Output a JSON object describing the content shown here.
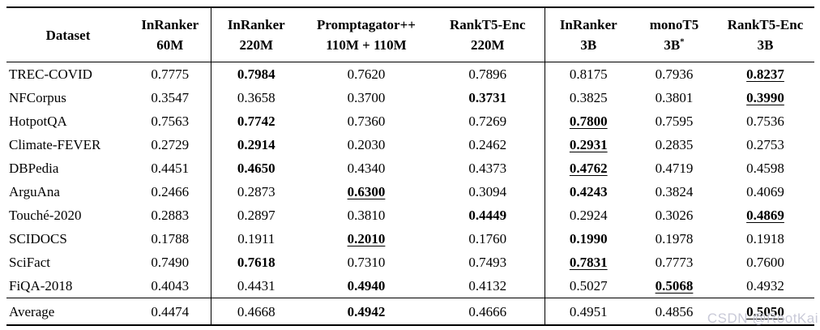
{
  "table": {
    "columns": [
      {
        "label": "Dataset",
        "sub": ""
      },
      {
        "label": "InRanker",
        "sub": "60M"
      },
      {
        "label": "InRanker",
        "sub": "220M"
      },
      {
        "label": "Promptagator++",
        "sub": "110M + 110M"
      },
      {
        "label": "RankT5-Enc",
        "sub": "220M"
      },
      {
        "label": "InRanker",
        "sub": "3B"
      },
      {
        "label": "monoT5",
        "sub": "3B",
        "sup": "*"
      },
      {
        "label": "RankT5-Enc",
        "sub": "3B"
      }
    ],
    "rows": [
      {
        "dataset": "TREC-COVID",
        "cells": [
          {
            "v": "0.7775"
          },
          {
            "v": "0.7984",
            "b": true
          },
          {
            "v": "0.7620"
          },
          {
            "v": "0.7896"
          },
          {
            "v": "0.8175"
          },
          {
            "v": "0.7936"
          },
          {
            "v": "0.8237",
            "b": true,
            "u": true
          }
        ]
      },
      {
        "dataset": "NFCorpus",
        "cells": [
          {
            "v": "0.3547"
          },
          {
            "v": "0.3658"
          },
          {
            "v": "0.3700"
          },
          {
            "v": "0.3731",
            "b": true
          },
          {
            "v": "0.3825"
          },
          {
            "v": "0.3801"
          },
          {
            "v": "0.3990",
            "b": true,
            "u": true
          }
        ]
      },
      {
        "dataset": "HotpotQA",
        "cells": [
          {
            "v": "0.7563"
          },
          {
            "v": "0.7742",
            "b": true
          },
          {
            "v": "0.7360"
          },
          {
            "v": "0.7269"
          },
          {
            "v": "0.7800",
            "b": true,
            "u": true
          },
          {
            "v": "0.7595"
          },
          {
            "v": "0.7536"
          }
        ]
      },
      {
        "dataset": "Climate-FEVER",
        "cells": [
          {
            "v": "0.2729"
          },
          {
            "v": "0.2914",
            "b": true
          },
          {
            "v": "0.2030"
          },
          {
            "v": "0.2462"
          },
          {
            "v": "0.2931",
            "b": true,
            "u": true
          },
          {
            "v": "0.2835"
          },
          {
            "v": "0.2753"
          }
        ]
      },
      {
        "dataset": "DBPedia",
        "cells": [
          {
            "v": "0.4451"
          },
          {
            "v": "0.4650",
            "b": true
          },
          {
            "v": "0.4340"
          },
          {
            "v": "0.4373"
          },
          {
            "v": "0.4762",
            "b": true,
            "u": true
          },
          {
            "v": "0.4719"
          },
          {
            "v": "0.4598"
          }
        ]
      },
      {
        "dataset": "ArguAna",
        "cells": [
          {
            "v": "0.2466"
          },
          {
            "v": "0.2873"
          },
          {
            "v": "0.6300",
            "b": true,
            "u": true
          },
          {
            "v": "0.3094"
          },
          {
            "v": "0.4243",
            "b": true
          },
          {
            "v": "0.3824"
          },
          {
            "v": "0.4069"
          }
        ]
      },
      {
        "dataset": "Touché-2020",
        "cells": [
          {
            "v": "0.2883"
          },
          {
            "v": "0.2897"
          },
          {
            "v": "0.3810"
          },
          {
            "v": "0.4449",
            "b": true
          },
          {
            "v": "0.2924"
          },
          {
            "v": "0.3026"
          },
          {
            "v": "0.4869",
            "b": true,
            "u": true
          }
        ]
      },
      {
        "dataset": "SCIDOCS",
        "cells": [
          {
            "v": "0.1788"
          },
          {
            "v": "0.1911"
          },
          {
            "v": "0.2010",
            "b": true,
            "u": true
          },
          {
            "v": "0.1760"
          },
          {
            "v": "0.1990",
            "b": true
          },
          {
            "v": "0.1978"
          },
          {
            "v": "0.1918"
          }
        ]
      },
      {
        "dataset": "SciFact",
        "cells": [
          {
            "v": "0.7490"
          },
          {
            "v": "0.7618",
            "b": true
          },
          {
            "v": "0.7310"
          },
          {
            "v": "0.7493"
          },
          {
            "v": "0.7831",
            "b": true,
            "u": true
          },
          {
            "v": "0.7773"
          },
          {
            "v": "0.7600"
          }
        ]
      },
      {
        "dataset": "FiQA-2018",
        "cells": [
          {
            "v": "0.4043"
          },
          {
            "v": "0.4431"
          },
          {
            "v": "0.4940",
            "b": true
          },
          {
            "v": "0.4132"
          },
          {
            "v": "0.5027"
          },
          {
            "v": "0.5068",
            "b": true,
            "u": true
          },
          {
            "v": "0.4932"
          }
        ]
      }
    ],
    "average_row": {
      "dataset": "Average",
      "cells": [
        {
          "v": "0.4474"
        },
        {
          "v": "0.4668"
        },
        {
          "v": "0.4942",
          "b": true
        },
        {
          "v": "0.4666"
        },
        {
          "v": "0.4951"
        },
        {
          "v": "0.4856"
        },
        {
          "v": "0.5050",
          "b": true,
          "u": true
        }
      ]
    }
  },
  "watermark": {
    "text": "CSDN @RootKai"
  }
}
